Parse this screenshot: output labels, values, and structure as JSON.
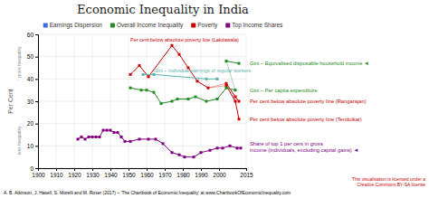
{
  "chart_data": {
    "type": "line",
    "title": "Economic Inequality in India",
    "y_label": "Per Cent",
    "axis_notes": [
      "↑ more Inequality",
      "less Inequality ↓"
    ],
    "xlim": [
      1900,
      2015
    ],
    "ylim": [
      0,
      60
    ],
    "xticks": [
      1900,
      1910,
      1920,
      1930,
      1940,
      1950,
      1960,
      1970,
      1980,
      1990,
      2000,
      2015
    ],
    "yticks": [
      0,
      10,
      20,
      30,
      40,
      50,
      60
    ],
    "grid": true,
    "legend_entries": [
      {
        "label": "Earnings Dispersion",
        "color": "#4169e1"
      },
      {
        "label": "Overall Income Inequality",
        "color": "#228B22"
      },
      {
        "label": "Poverty",
        "color": "#cc0000"
      },
      {
        "label": "Top Income Shares",
        "color": "#800080"
      }
    ],
    "series": [
      {
        "color": "#cc0000",
        "marker": "square",
        "x": [
          1951,
          1956,
          1961,
          1974,
          1978,
          1983,
          1988,
          1994
        ],
        "values": [
          42,
          46,
          41,
          55,
          51,
          45,
          39,
          36
        ]
      },
      {
        "color": "#cc0000",
        "marker": "square",
        "x": [
          2004,
          2009,
          2011
        ],
        "values": [
          38,
          32,
          30
        ]
      },
      {
        "color": "#cc0000",
        "marker": "square",
        "x": [
          2004,
          2009,
          2011
        ],
        "values": [
          37,
          30,
          22
        ]
      },
      {
        "color": "#228B22",
        "marker": "square",
        "x": [
          1951,
          1957,
          1960,
          1964,
          1968,
          1974,
          1977,
          1983,
          1987,
          1993,
          1999,
          2004,
          2009
        ],
        "values": [
          36,
          35,
          35,
          34,
          29,
          30,
          31,
          31,
          32,
          30,
          31,
          36,
          35
        ]
      },
      {
        "color": "#5ab4ac",
        "marker": "square",
        "x": [
          1958,
          1964,
          1993,
          1999
        ],
        "values": [
          42,
          42,
          40,
          40
        ]
      },
      {
        "color": "#228B22",
        "marker": "square",
        "x": [
          2004,
          2011
        ],
        "values": [
          48,
          47
        ]
      },
      {
        "color": "#800080",
        "marker": "square",
        "x": [
          1922,
          1924,
          1926,
          1928,
          1930,
          1932,
          1934,
          1936,
          1938,
          1940,
          1942,
          1944,
          1946,
          1948,
          1951,
          1956,
          1961,
          1965,
          1969,
          1974,
          1978,
          1981,
          1986,
          1990,
          1995,
          1999,
          2002,
          2006,
          2010,
          2012
        ],
        "values": [
          13,
          14,
          13,
          14,
          14,
          14,
          14,
          17,
          17,
          17,
          16,
          16,
          14,
          12,
          12,
          13,
          13,
          13,
          11,
          7,
          6,
          5,
          5,
          7,
          8,
          9,
          9,
          10,
          9,
          9
        ]
      },
      {
        "color": "#cc0000",
        "marker": "none",
        "x": [
          1994,
          2004
        ],
        "values": [
          36,
          38
        ]
      },
      {
        "color": "#cc0000",
        "marker": "none",
        "x": [
          1994,
          2004
        ],
        "values": [
          36,
          37
        ]
      },
      {
        "color": "#228B22",
        "marker": "none",
        "x": [
          2009,
          2004
        ],
        "values": [
          35,
          48
        ]
      }
    ],
    "annotations": [
      {
        "text": "Per cent below absolute poverty line (Lakdawala)",
        "x": 1951,
        "y": 57.5,
        "color": "#cc0000"
      },
      {
        "text": "Gini – Individual earnings of regular workers",
        "x": 1964,
        "y": 43.5,
        "color": "#5ab4ac"
      }
    ],
    "right_annotations": [
      {
        "text": "Gini – Equivalised disposable household income ◄",
        "y": 47.0,
        "color": "#228B22"
      },
      {
        "text": "Gini – Per capita expenditure",
        "y": 35.0,
        "color": "#228B22"
      },
      {
        "text": "Per cent below absolute poverty line (Rangarajan)",
        "y": 30.0,
        "color": "#cc0000"
      },
      {
        "text": "Per cent below absolute poverty line (Tendulkar)",
        "y": 22.0,
        "color": "#cc0000"
      },
      {
        "text": "Share of top 1 per cent in gross\nincome (individuals, excluding capital gains) ◄",
        "y": 9.5,
        "color": "#800080"
      }
    ],
    "footnotes": [
      {
        "text": "A. B. Atkinson, J. Hasell, S. Morelli and M. Roser (2017) – 'The Chartbook of Economic Inequality' at www.ChartbookOfEconomicInequality.com",
        "color": "black"
      },
      {
        "text": "This visualisation is licensed under a\nCreative Commons BY-SA license",
        "color": "#cc0000"
      }
    ]
  }
}
